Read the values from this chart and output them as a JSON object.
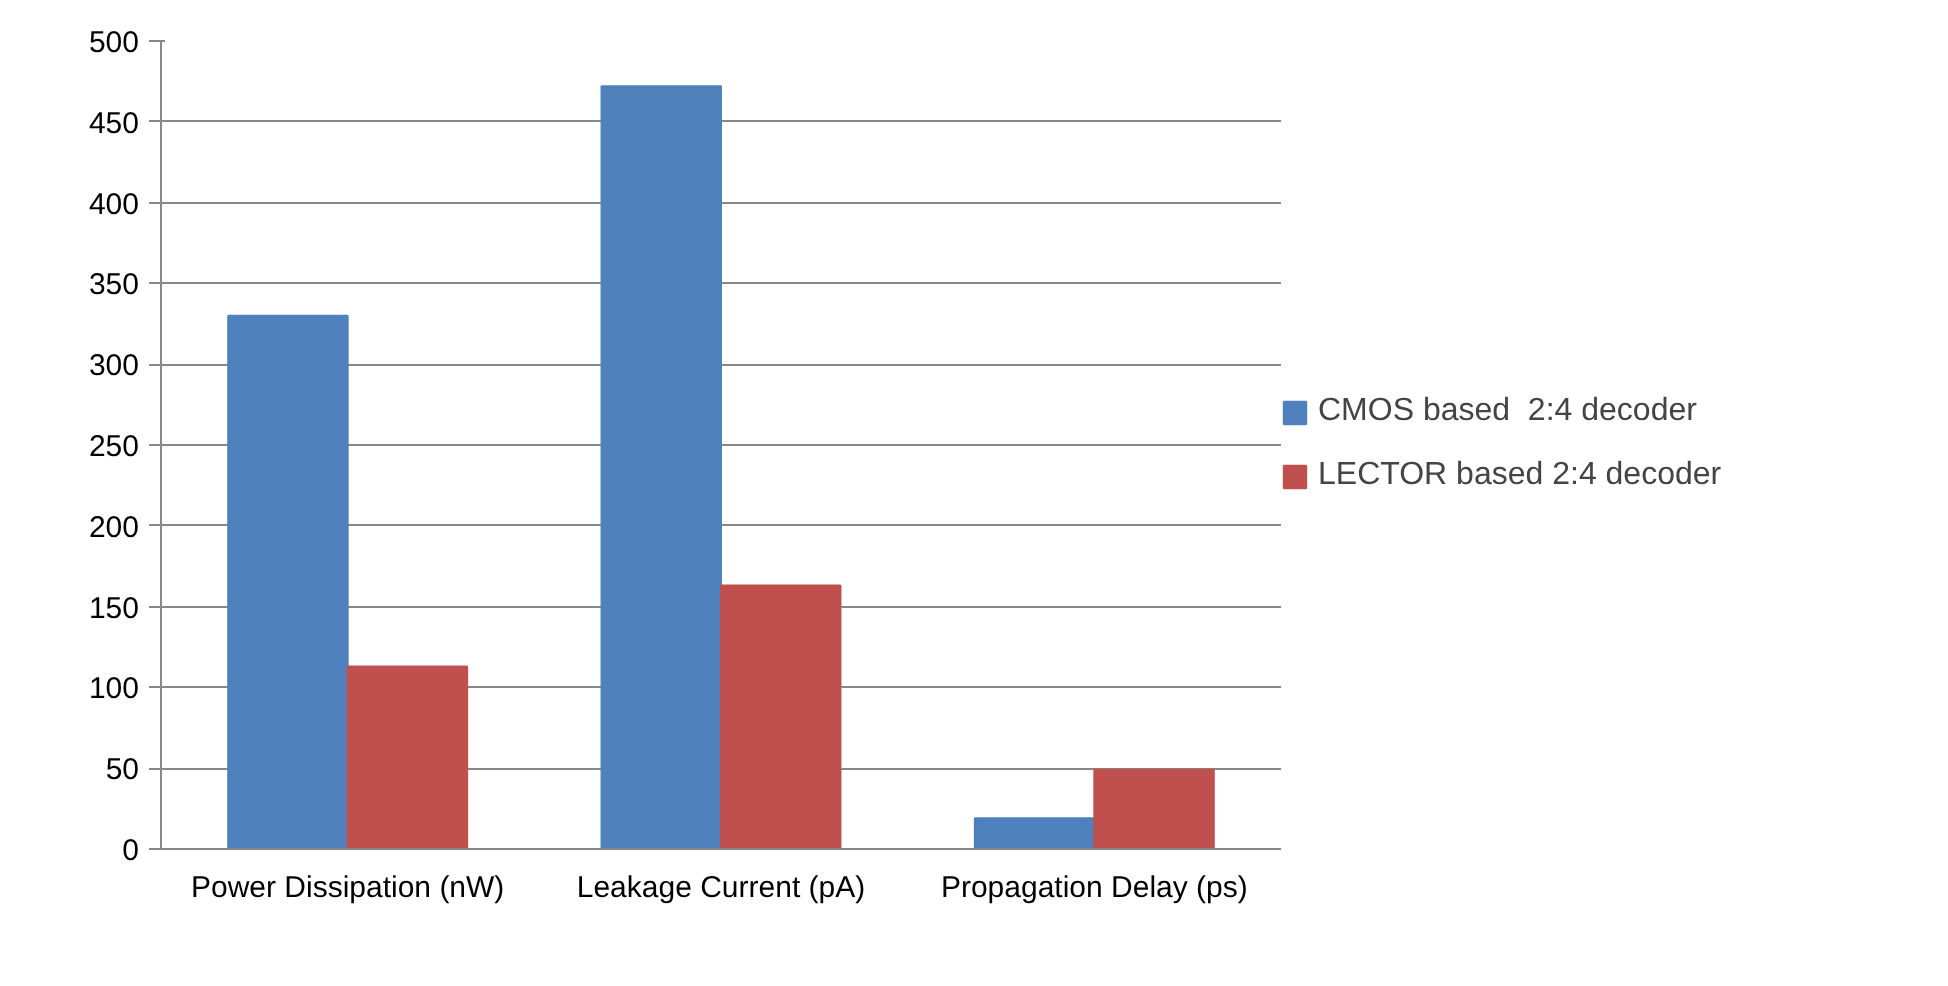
{
  "chart_data": {
    "type": "bar",
    "categories": [
      "Power Dissipation (nW)",
      "Leakage Current (pA)",
      "Propagation Delay (ps)"
    ],
    "series": [
      {
        "name": "CMOS based  2:4 decoder",
        "color": "#4f81bd",
        "values": [
          330,
          472,
          19
        ]
      },
      {
        "name": "LECTOR based 2:4 decoder",
        "color": "#c0504d",
        "values": [
          113,
          163,
          49
        ]
      }
    ],
    "ylim": [
      0,
      500
    ],
    "yticks": [
      0,
      50,
      100,
      150,
      200,
      250,
      300,
      350,
      400,
      450,
      500
    ],
    "grid": "y",
    "legend": "right"
  }
}
